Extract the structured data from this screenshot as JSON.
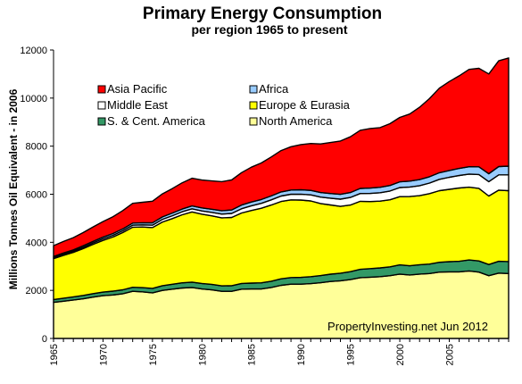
{
  "chart_data": {
    "type": "area",
    "stacked": true,
    "title": "Primary Energy Consumption",
    "subtitle": "per region 1965 to present",
    "ylabel": "Millions Tonnes Oil Equivalent - in 2006",
    "xlabel": "",
    "ylim": [
      0,
      12000
    ],
    "yticks": [
      "0",
      "2000",
      "4000",
      "6000",
      "8000",
      "10000",
      "12000"
    ],
    "xticks": [
      "1965",
      "1970",
      "1975",
      "1980",
      "1985",
      "1990",
      "1995",
      "2000",
      "2005"
    ],
    "grid": false,
    "legend": "upper-left inside plot, two columns",
    "annotation": "PropertyInvesting.net Jun 2012",
    "x": [
      1965,
      1966,
      1967,
      1968,
      1969,
      1970,
      1971,
      1972,
      1973,
      1974,
      1975,
      1976,
      1977,
      1978,
      1979,
      1980,
      1981,
      1982,
      1983,
      1984,
      1985,
      1986,
      1987,
      1988,
      1989,
      1990,
      1991,
      1992,
      1993,
      1994,
      1995,
      1996,
      1997,
      1998,
      1999,
      2000,
      2001,
      2002,
      2003,
      2004,
      2005,
      2006,
      2007,
      2008,
      2009,
      2010,
      2011
    ],
    "series": [
      {
        "name": "North America",
        "color": "#ffff99",
        "values": [
          1500,
          1550,
          1600,
          1650,
          1720,
          1780,
          1810,
          1860,
          1960,
          1940,
          1900,
          2000,
          2050,
          2100,
          2120,
          2060,
          2020,
          1960,
          1960,
          2050,
          2060,
          2060,
          2120,
          2210,
          2260,
          2260,
          2280,
          2320,
          2370,
          2400,
          2450,
          2530,
          2550,
          2570,
          2610,
          2680,
          2640,
          2680,
          2700,
          2760,
          2770,
          2770,
          2810,
          2760,
          2610,
          2720,
          2700
        ]
      },
      {
        "name": "S. & Cent. America",
        "color": "#339966",
        "values": [
          120,
          125,
          130,
          140,
          145,
          150,
          160,
          165,
          170,
          175,
          185,
          195,
          205,
          215,
          225,
          230,
          230,
          230,
          235,
          240,
          245,
          255,
          260,
          270,
          275,
          280,
          290,
          295,
          305,
          315,
          330,
          345,
          355,
          365,
          370,
          380,
          385,
          390,
          395,
          410,
          425,
          440,
          455,
          465,
          465,
          490,
          500
        ]
      },
      {
        "name": "Europe & Eurasia",
        "color": "#ffff00",
        "values": [
          1700,
          1780,
          1850,
          1950,
          2050,
          2150,
          2250,
          2380,
          2500,
          2520,
          2530,
          2650,
          2730,
          2830,
          2920,
          2880,
          2850,
          2830,
          2840,
          2930,
          3020,
          3100,
          3170,
          3220,
          3230,
          3220,
          3150,
          3000,
          2880,
          2780,
          2770,
          2830,
          2790,
          2780,
          2790,
          2840,
          2880,
          2870,
          2930,
          2980,
          3010,
          3050,
          3030,
          3020,
          2850,
          2960,
          2950
        ]
      },
      {
        "name": "Middle East",
        "color": "#ffffff",
        "values": [
          40,
          45,
          50,
          55,
          60,
          65,
          70,
          75,
          85,
          90,
          100,
          110,
          120,
          125,
          130,
          135,
          145,
          155,
          165,
          180,
          195,
          205,
          215,
          225,
          235,
          245,
          255,
          265,
          280,
          300,
          315,
          325,
          340,
          350,
          365,
          380,
          395,
          415,
          440,
          470,
          500,
          520,
          545,
          575,
          600,
          635,
          660
        ]
      },
      {
        "name": "Africa",
        "color": "#99ccff",
        "values": [
          50,
          55,
          55,
          60,
          65,
          70,
          75,
          80,
          85,
          90,
          95,
          100,
          110,
          115,
          120,
          125,
          130,
          140,
          145,
          150,
          155,
          160,
          165,
          170,
          175,
          180,
          185,
          190,
          195,
          200,
          205,
          210,
          220,
          225,
          230,
          235,
          245,
          255,
          265,
          275,
          285,
          295,
          305,
          320,
          330,
          345,
          360
        ]
      },
      {
        "name": "Asia Pacific",
        "color": "#ff0000",
        "values": [
          450,
          480,
          510,
          550,
          600,
          650,
          700,
          760,
          820,
          850,
          900,
          960,
          1020,
          1090,
          1150,
          1160,
          1180,
          1210,
          1250,
          1350,
          1450,
          1520,
          1620,
          1720,
          1800,
          1880,
          1950,
          2020,
          2120,
          2220,
          2320,
          2420,
          2480,
          2480,
          2570,
          2680,
          2790,
          3010,
          3250,
          3520,
          3700,
          3850,
          4050,
          4100,
          4150,
          4400,
          4500
        ]
      }
    ]
  }
}
